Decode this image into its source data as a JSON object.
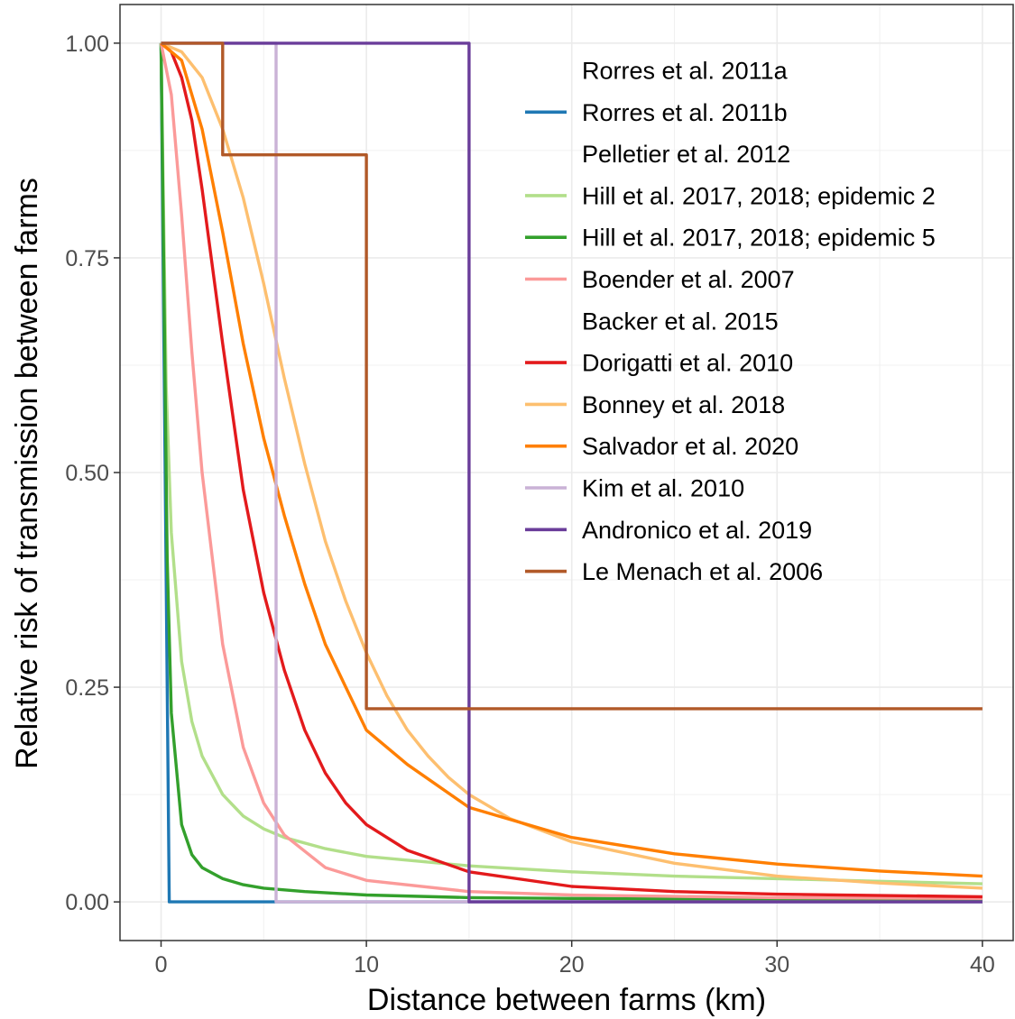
{
  "chart_data": {
    "type": "line",
    "title": "",
    "xlabel": "Distance between farms (km)",
    "ylabel": "Relative risk of transmission between farms",
    "xlim": [
      -2,
      41.5
    ],
    "ylim": [
      -0.045,
      1.045
    ],
    "xticks": [
      0,
      10,
      20,
      30,
      40
    ],
    "xtick_labels": [
      "0",
      "10",
      "20",
      "30",
      "40"
    ],
    "yticks": [
      0,
      0.25,
      0.5,
      0.75,
      1.0
    ],
    "ytick_labels": [
      "0.00",
      "0.25",
      "0.50",
      "0.75",
      "1.00"
    ],
    "grid": true,
    "legend_position": "top-right",
    "series": [
      {
        "name": "Rorres et al. 2011a",
        "color": "#a6cee3",
        "swatch": false,
        "points": []
      },
      {
        "name": "Rorres et al. 2011b",
        "color": "#1f78b4",
        "swatch": true,
        "points": [
          [
            0,
            1.0
          ],
          [
            0.4,
            0.0
          ],
          [
            40,
            0.0
          ]
        ]
      },
      {
        "name": "Pelletier et al. 2012",
        "color": "#b2df8a",
        "swatch": false,
        "points": []
      },
      {
        "name": "Hill et al. 2017, 2018; epidemic 2",
        "color": "#b2df8a",
        "swatch": true,
        "points": [
          [
            0,
            1.0
          ],
          [
            0.25,
            0.6
          ],
          [
            0.5,
            0.43
          ],
          [
            1,
            0.28
          ],
          [
            1.5,
            0.21
          ],
          [
            2,
            0.17
          ],
          [
            3,
            0.125
          ],
          [
            4,
            0.1
          ],
          [
            5,
            0.085
          ],
          [
            6,
            0.075
          ],
          [
            8,
            0.062
          ],
          [
            10,
            0.053
          ],
          [
            15,
            0.042
          ],
          [
            20,
            0.035
          ],
          [
            25,
            0.03
          ],
          [
            30,
            0.027
          ],
          [
            35,
            0.024
          ],
          [
            40,
            0.021
          ]
        ]
      },
      {
        "name": "Hill et al. 2017, 2018; epidemic 5",
        "color": "#33a02c",
        "swatch": true,
        "points": [
          [
            0,
            1.0
          ],
          [
            0.15,
            0.7
          ],
          [
            0.3,
            0.4
          ],
          [
            0.5,
            0.22
          ],
          [
            1,
            0.09
          ],
          [
            1.5,
            0.055
          ],
          [
            2,
            0.04
          ],
          [
            3,
            0.027
          ],
          [
            4,
            0.02
          ],
          [
            5,
            0.016
          ],
          [
            7,
            0.012
          ],
          [
            10,
            0.008
          ],
          [
            15,
            0.005
          ],
          [
            20,
            0.004
          ],
          [
            30,
            0.003
          ],
          [
            40,
            0.002
          ]
        ]
      },
      {
        "name": "Boender et al. 2007",
        "color": "#fb9a99",
        "swatch": true,
        "points": [
          [
            0,
            1.0
          ],
          [
            0.5,
            0.94
          ],
          [
            1,
            0.8
          ],
          [
            1.5,
            0.64
          ],
          [
            2,
            0.5
          ],
          [
            3,
            0.3
          ],
          [
            4,
            0.18
          ],
          [
            5,
            0.115
          ],
          [
            6,
            0.078
          ],
          [
            8,
            0.04
          ],
          [
            10,
            0.025
          ],
          [
            15,
            0.012
          ],
          [
            20,
            0.008
          ],
          [
            30,
            0.005
          ],
          [
            40,
            0.004
          ]
        ]
      },
      {
        "name": "Backer et al. 2015",
        "color": "#fb9a99",
        "swatch": false,
        "points": []
      },
      {
        "name": "Dorigatti et al. 2010",
        "color": "#e31a1c",
        "swatch": true,
        "points": [
          [
            0,
            1.0
          ],
          [
            0.5,
            0.99
          ],
          [
            1,
            0.96
          ],
          [
            1.5,
            0.91
          ],
          [
            2,
            0.83
          ],
          [
            3,
            0.65
          ],
          [
            4,
            0.48
          ],
          [
            5,
            0.36
          ],
          [
            6,
            0.27
          ],
          [
            7,
            0.2
          ],
          [
            8,
            0.15
          ],
          [
            9,
            0.115
          ],
          [
            10,
            0.09
          ],
          [
            12,
            0.06
          ],
          [
            15,
            0.035
          ],
          [
            20,
            0.018
          ],
          [
            25,
            0.012
          ],
          [
            30,
            0.009
          ],
          [
            40,
            0.006
          ]
        ]
      },
      {
        "name": "Bonney et al. 2018",
        "color": "#fdbf6f",
        "swatch": true,
        "points": [
          [
            0,
            1.0
          ],
          [
            1,
            0.99
          ],
          [
            2,
            0.96
          ],
          [
            3,
            0.9
          ],
          [
            4,
            0.82
          ],
          [
            5,
            0.72
          ],
          [
            6,
            0.61
          ],
          [
            7,
            0.51
          ],
          [
            8,
            0.42
          ],
          [
            9,
            0.35
          ],
          [
            10,
            0.29
          ],
          [
            11,
            0.24
          ],
          [
            12,
            0.2
          ],
          [
            13,
            0.17
          ],
          [
            14,
            0.145
          ],
          [
            15,
            0.125
          ],
          [
            17,
            0.097
          ],
          [
            20,
            0.07
          ],
          [
            25,
            0.045
          ],
          [
            30,
            0.03
          ],
          [
            35,
            0.022
          ],
          [
            40,
            0.016
          ]
        ]
      },
      {
        "name": "Salvador et al. 2020",
        "color": "#ff7f00",
        "swatch": true,
        "points": [
          [
            0,
            1.0
          ],
          [
            1,
            0.98
          ],
          [
            2,
            0.9
          ],
          [
            3,
            0.78
          ],
          [
            4,
            0.65
          ],
          [
            5,
            0.54
          ],
          [
            6,
            0.45
          ],
          [
            7,
            0.37
          ],
          [
            8,
            0.3
          ],
          [
            9,
            0.25
          ],
          [
            10,
            0.2
          ],
          [
            12,
            0.16
          ],
          [
            15,
            0.11
          ],
          [
            20,
            0.075
          ],
          [
            25,
            0.056
          ],
          [
            30,
            0.044
          ],
          [
            35,
            0.036
          ],
          [
            40,
            0.03
          ]
        ]
      },
      {
        "name": "Kim et al. 2010",
        "color": "#cab2d6",
        "swatch": true,
        "points": [
          [
            0,
            1.0
          ],
          [
            5.6,
            1.0
          ],
          [
            5.6,
            0.0
          ],
          [
            40,
            0.0
          ]
        ]
      },
      {
        "name": "Andronico et al. 2019",
        "color": "#6a3d9a",
        "swatch": true,
        "points": [
          [
            0,
            1.0
          ],
          [
            15,
            1.0
          ],
          [
            15,
            0.0
          ],
          [
            40,
            0.0
          ]
        ]
      },
      {
        "name": "Le Menach et al. 2006",
        "color": "#b15928",
        "swatch": true,
        "points": [
          [
            0,
            1.0
          ],
          [
            3,
            1.0
          ],
          [
            3,
            0.87
          ],
          [
            10,
            0.87
          ],
          [
            10,
            0.225
          ],
          [
            40,
            0.225
          ]
        ]
      }
    ]
  }
}
